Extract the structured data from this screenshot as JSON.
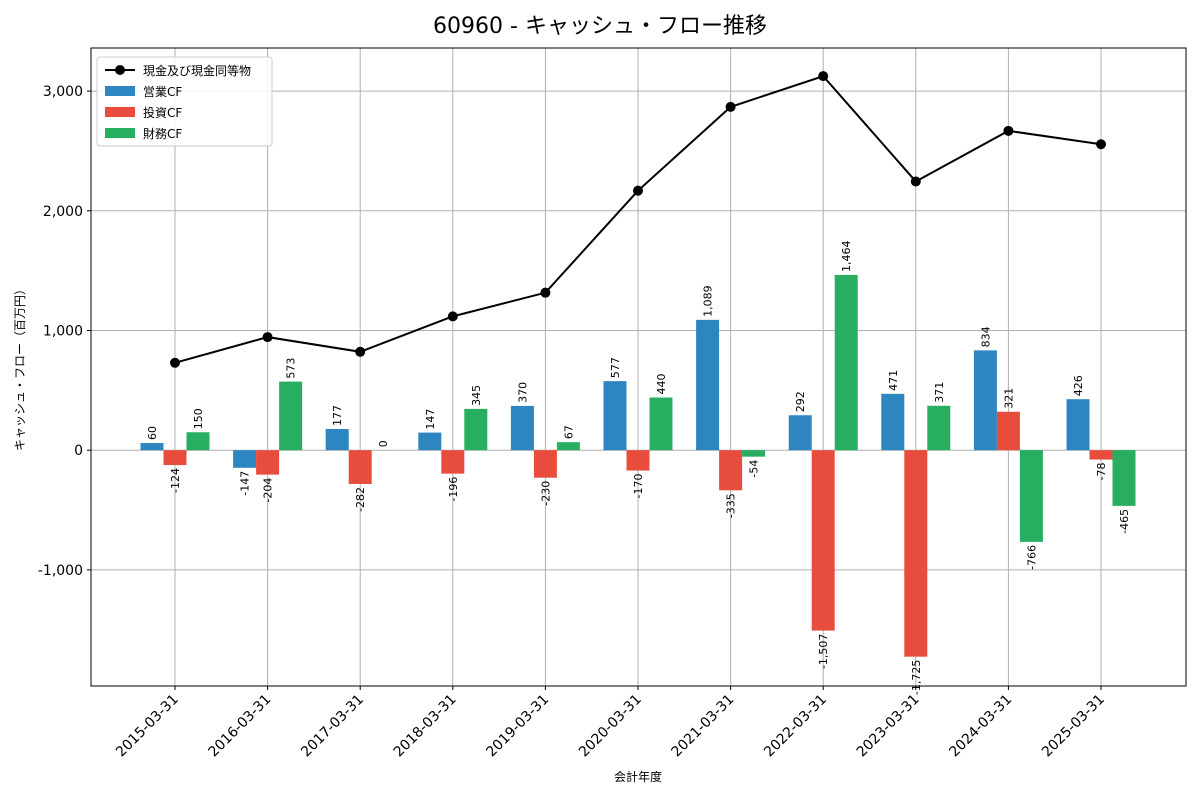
{
  "chart_data": {
    "type": "bar",
    "title": "60960 - キャッシュ・フロー推移",
    "xlabel": "会計年度",
    "ylabel": "キャッシュ・フロー（百万円）",
    "categories": [
      "2015-03-31",
      "2016-03-31",
      "2017-03-31",
      "2018-03-31",
      "2019-03-31",
      "2020-03-31",
      "2021-03-31",
      "2022-03-31",
      "2023-03-31",
      "2024-03-31",
      "2025-03-31"
    ],
    "series": [
      {
        "name": "営業CF",
        "type": "bar",
        "color": "#2e86c1",
        "values": [
          60,
          -147,
          177,
          147,
          370,
          577,
          1089,
          292,
          471,
          834,
          426
        ]
      },
      {
        "name": "投資CF",
        "type": "bar",
        "color": "#e74c3c",
        "values": [
          -124,
          -204,
          -282,
          -196,
          -230,
          -170,
          -335,
          -1507,
          -1725,
          321,
          -78
        ]
      },
      {
        "name": "財務CF",
        "type": "bar",
        "color": "#27ae60",
        "values": [
          150,
          573,
          0,
          345,
          67,
          440,
          -54,
          1464,
          371,
          -766,
          -465
        ]
      },
      {
        "name": "現金及び現金同等物",
        "type": "line",
        "color": "#000000",
        "values": [
          730,
          945,
          822,
          1118,
          1316,
          2168,
          2868,
          3125,
          2245,
          2668,
          2556
        ]
      }
    ],
    "ylim": [
      -1970,
      3360
    ],
    "yticks": [
      -1000,
      0,
      1000,
      2000,
      3000
    ],
    "ytick_labels": [
      "-1,000",
      "0",
      "1,000",
      "2,000",
      "3,000"
    ],
    "grid": true,
    "legend_position": "top-left"
  }
}
